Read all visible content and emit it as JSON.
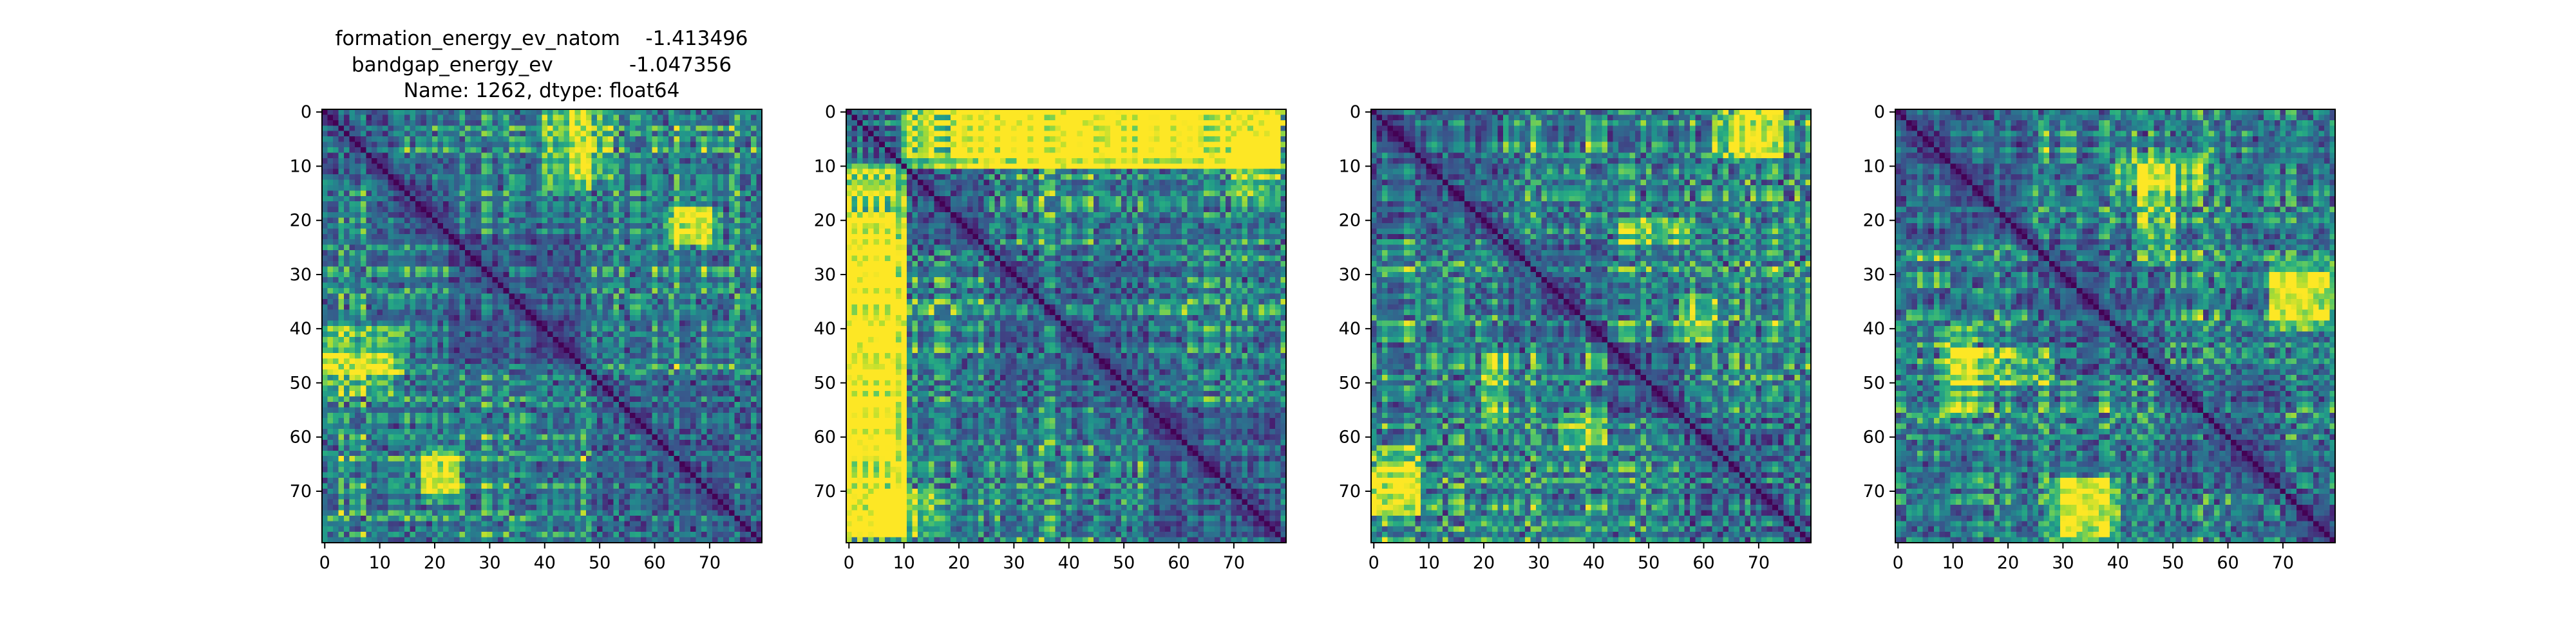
{
  "figure": {
    "title_lines": [
      "formation_energy_ev_natom    -1.413496",
      "bandgap_energy_ev            -1.047356",
      "Name: 1262, dtype: float64"
    ]
  },
  "chart_data": [
    {
      "type": "heatmap",
      "colormap": "viridis",
      "matrix_size": 80,
      "diagonal": "minimum (dark purple)",
      "block_boundaries": [
        13,
        23,
        49
      ],
      "xticks": [
        0,
        10,
        20,
        30,
        40,
        50,
        60,
        70
      ],
      "yticks": [
        0,
        10,
        20,
        30,
        40,
        50,
        60,
        70
      ],
      "xlim": [
        -0.5,
        79.5
      ],
      "ylim": [
        79.5,
        -0.5
      ],
      "bright_regions": [
        {
          "rows": [
            0,
            14
          ],
          "cols": [
            40,
            48
          ]
        },
        {
          "rows": [
            18,
            24
          ],
          "cols": [
            62,
            70
          ]
        },
        {
          "rows": [
            45,
            52
          ],
          "cols": [
            0,
            12
          ]
        },
        {
          "rows": [
            64,
            72
          ],
          "cols": [
            18,
            24
          ]
        }
      ]
    },
    {
      "type": "heatmap",
      "colormap": "viridis",
      "matrix_size": 80,
      "diagonal": "minimum (dark purple)",
      "block_boundaries": [
        10,
        26,
        55
      ],
      "banded_edges": [
        0,
        11
      ],
      "xticks": [
        0,
        10,
        20,
        30,
        40,
        50,
        60,
        70
      ],
      "yticks": [
        0,
        10,
        20,
        30,
        40,
        50,
        60,
        70
      ],
      "xlim": [
        -0.5,
        79.5
      ],
      "ylim": [
        79.5,
        -0.5
      ],
      "bright_regions": [
        {
          "rows": [
            0,
            10
          ],
          "cols": [
            20,
            78
          ]
        },
        {
          "rows": [
            10,
            78
          ],
          "cols": [
            0,
            10
          ]
        },
        {
          "rows": [
            5,
            15
          ],
          "cols": [
            70,
            78
          ]
        }
      ]
    },
    {
      "type": "heatmap",
      "colormap": "viridis",
      "matrix_size": 80,
      "diagonal": "minimum (dark purple)",
      "block_boundaries": [
        24,
        43,
        57
      ],
      "xticks": [
        0,
        10,
        20,
        30,
        40,
        50,
        60,
        70
      ],
      "yticks": [
        0,
        10,
        20,
        30,
        40,
        50,
        60,
        70
      ],
      "xlim": [
        -0.5,
        79.5
      ],
      "ylim": [
        79.5,
        -0.5
      ],
      "bright_regions": [
        {
          "rows": [
            0,
            8
          ],
          "cols": [
            62,
            74
          ]
        },
        {
          "rows": [
            20,
            24
          ],
          "cols": [
            45,
            57
          ]
        },
        {
          "rows": [
            56,
            62
          ],
          "cols": [
            34,
            42
          ]
        },
        {
          "rows": [
            66,
            74
          ],
          "cols": [
            0,
            8
          ]
        }
      ]
    },
    {
      "type": "heatmap",
      "colormap": "viridis",
      "matrix_size": 80,
      "diagonal": "minimum (dark purple)",
      "block_boundaries": [
        24,
        49,
        71
      ],
      "xticks": [
        0,
        10,
        20,
        30,
        40,
        50,
        60,
        70
      ],
      "yticks": [
        0,
        10,
        20,
        30,
        40,
        50,
        60,
        70
      ],
      "xlim": [
        -0.5,
        79.5
      ],
      "ylim": [
        79.5,
        -0.5
      ],
      "bright_regions": [
        {
          "rows": [
            8,
            14
          ],
          "cols": [
            40,
            56
          ]
        },
        {
          "rows": [
            28,
            38
          ],
          "cols": [
            68,
            79
          ]
        },
        {
          "rows": [
            44,
            50
          ],
          "cols": [
            10,
            28
          ]
        },
        {
          "rows": [
            68,
            78
          ],
          "cols": [
            30,
            40
          ]
        }
      ]
    }
  ]
}
